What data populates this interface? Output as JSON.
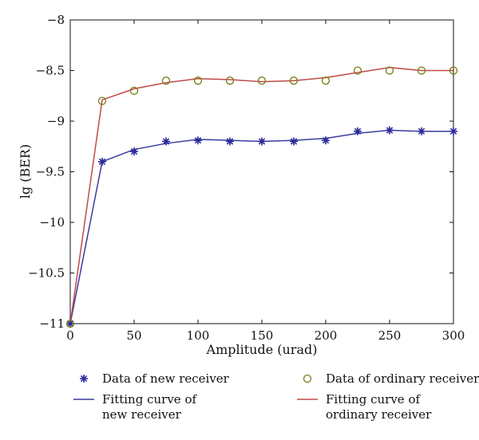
{
  "chart_data": {
    "type": "line",
    "xlabel": "Amplitude (urad)",
    "ylabel": "lg (BER)",
    "xlim": [
      0,
      300
    ],
    "ylim": [
      -11,
      -8
    ],
    "x_ticks": [
      0,
      50,
      100,
      150,
      200,
      250,
      300
    ],
    "x_tick_labels": [
      "0",
      "50",
      "100",
      "150",
      "200",
      "250",
      "300"
    ],
    "y_ticks": [
      -11,
      -10.5,
      -10,
      -9.5,
      -9,
      -8.5,
      -8
    ],
    "y_tick_labels": [
      "−11",
      "−10.5",
      "−10",
      "−9.5",
      "−9",
      "−8.5",
      "−8"
    ],
    "grid": false,
    "legend_position": "below",
    "x": [
      0,
      25,
      50,
      75,
      100,
      125,
      150,
      175,
      200,
      225,
      250,
      275,
      300
    ],
    "series": [
      {
        "name": "Data of new receiver",
        "kind": "markers",
        "marker": "asterisk",
        "color": "#2a2a9a",
        "values": [
          -11.0,
          -9.4,
          -9.3,
          -9.2,
          -9.19,
          -9.2,
          -9.2,
          -9.2,
          -9.19,
          -9.1,
          -9.09,
          -9.1,
          -9.1
        ]
      },
      {
        "name": "Data of ordinary receiver",
        "kind": "markers",
        "marker": "circle",
        "color": "#7a7a10",
        "values": [
          -11.0,
          -8.8,
          -8.7,
          -8.6,
          -8.6,
          -8.6,
          -8.6,
          -8.6,
          -8.6,
          -8.5,
          -8.5,
          -8.5,
          -8.5
        ]
      },
      {
        "name": "Fitting curve of new receiver",
        "kind": "line",
        "color": "#3a3aa0",
        "values": [
          -11.0,
          -9.4,
          -9.28,
          -9.22,
          -9.18,
          -9.19,
          -9.2,
          -9.19,
          -9.17,
          -9.12,
          -9.09,
          -9.1,
          -9.1
        ]
      },
      {
        "name": "Fitting curve of ordinary receiver",
        "kind": "line",
        "color": "#c04a4a",
        "values": [
          -11.0,
          -8.79,
          -8.68,
          -8.62,
          -8.58,
          -8.59,
          -8.61,
          -8.6,
          -8.57,
          -8.52,
          -8.47,
          -8.5,
          -8.5
        ]
      }
    ],
    "legend": [
      {
        "series": 0,
        "lines": [
          "Data of new receiver"
        ]
      },
      {
        "series": 1,
        "lines": [
          "Data of ordinary receiver"
        ]
      },
      {
        "series": 2,
        "lines": [
          "Fitting curve of",
          "new receiver"
        ]
      },
      {
        "series": 3,
        "lines": [
          "Fitting curve of",
          "ordinary receiver"
        ]
      }
    ]
  }
}
